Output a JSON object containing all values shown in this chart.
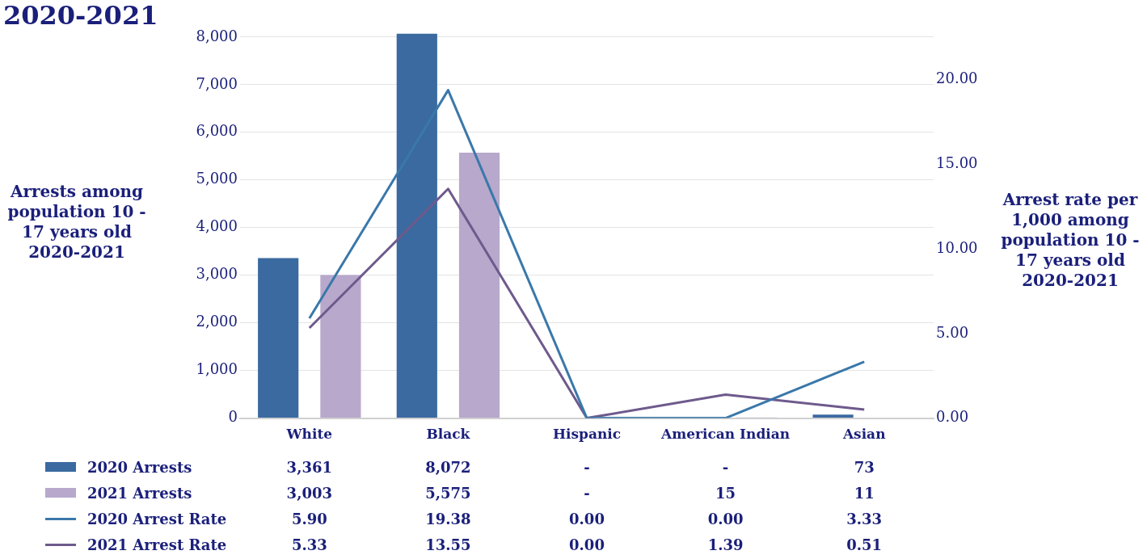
{
  "chart_data": {
    "type": "bar",
    "title": "2020-2021",
    "ylabel": "Arrests among population 10 - 17 years old 2020-2021",
    "y2label": "Arrest rate per 1,000 among population 10 - 17 years old 2020-2021",
    "categories": [
      "White",
      "Black",
      "Hispanic",
      "American Indian",
      "Asian"
    ],
    "series": [
      {
        "name": "2020 Arrests",
        "color": "#3a6aa0",
        "values": [
          3361,
          8072,
          null,
          null,
          73
        ],
        "value_labels": [
          "3,361",
          "8,072",
          "-",
          "-",
          "73"
        ]
      },
      {
        "name": "2021 Arrests",
        "color": "#b7a8cc",
        "values": [
          3003,
          5575,
          null,
          15,
          11
        ],
        "value_labels": [
          "3,003",
          "5,575",
          "-",
          "15",
          "11"
        ]
      },
      {
        "name": "2020 Arrest Rate",
        "type": "line",
        "axis": "y2",
        "color": "#3a78aa",
        "values": [
          5.9,
          19.38,
          0,
          0,
          3.33
        ],
        "value_labels": [
          "5.90",
          "19.38",
          "0.00",
          "0.00",
          "3.33"
        ]
      },
      {
        "name": "2021 Arrest Rate",
        "type": "line",
        "axis": "y2",
        "color": "#6e5a8c",
        "values": [
          5.33,
          13.55,
          0,
          1.39,
          0.51
        ],
        "value_labels": [
          "5.33",
          "13.55",
          "0.00",
          "1.39",
          "0.51"
        ]
      }
    ],
    "ylim": [
      0,
      8100
    ],
    "yticks": [
      {
        "value": 0,
        "label": "0"
      },
      {
        "value": 1000,
        "label": "1,000"
      },
      {
        "value": 2000,
        "label": "2,000"
      },
      {
        "value": 3000,
        "label": "3,000"
      },
      {
        "value": 4000,
        "label": "4,000"
      },
      {
        "value": 5000,
        "label": "5,000"
      },
      {
        "value": 6000,
        "label": "6,000"
      },
      {
        "value": 7000,
        "label": "7,000"
      },
      {
        "value": 8000,
        "label": "8,000"
      }
    ],
    "y2lim": [
      0,
      22.8
    ],
    "y2ticks": [
      {
        "value": 0,
        "label": "0.00"
      },
      {
        "value": 5,
        "label": "5.00"
      },
      {
        "value": 10,
        "label": "10.00"
      },
      {
        "value": 15,
        "label": "15.00"
      },
      {
        "value": 20,
        "label": "20.00"
      }
    ],
    "grid": "y",
    "legend": "bottom",
    "marker": "none"
  }
}
